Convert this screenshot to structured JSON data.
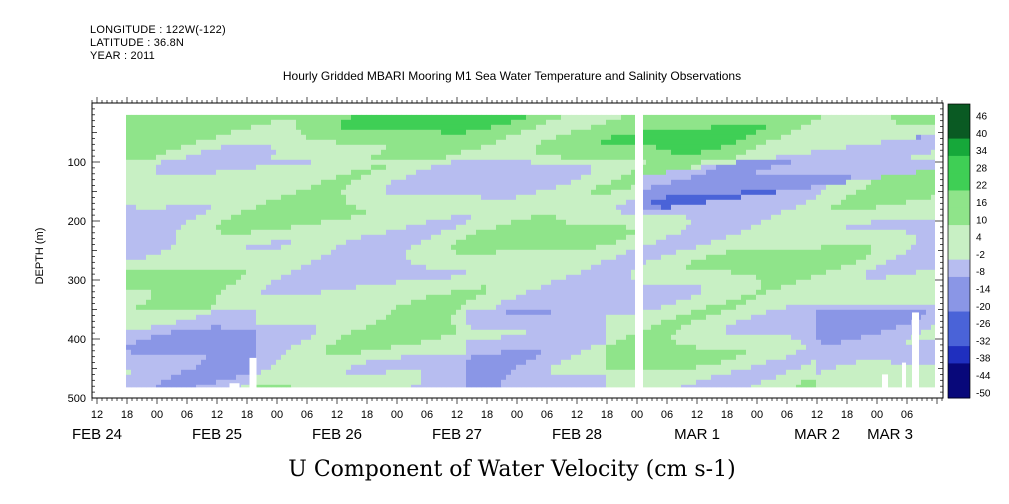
{
  "header": {
    "longitude": "LONGITUDE : 122W(-122)",
    "latitude": "LATITUDE : 36.8N",
    "year": "YEAR : 2011",
    "title": "Hourly Gridded MBARI Mooring M1 Sea Water Temperature and Salinity Observations"
  },
  "chart_data": {
    "type": "heatmap",
    "title": "Hourly Gridded MBARI Mooring M1 Sea Water Temperature and Salinity Observations",
    "xlabel": "U Component of Water Velocity (cm s-1)",
    "ylabel": "DEPTH (m)",
    "ylim": [
      500,
      0
    ],
    "yticks": [
      100,
      200,
      300,
      400,
      500
    ],
    "x_hour_ticks": [
      "12",
      "18",
      "00",
      "06",
      "12",
      "18",
      "00",
      "06",
      "12",
      "18",
      "00",
      "06",
      "12",
      "18",
      "00",
      "06",
      "12",
      "18",
      "00",
      "06",
      "12",
      "18",
      "00",
      "06",
      "12",
      "18",
      "00",
      "06"
    ],
    "x_day_labels": [
      "FEB 24",
      "FEB 25",
      "FEB 26",
      "FEB 27",
      "FEB 28",
      "MAR  1",
      "MAR  2",
      "MAR  3"
    ],
    "colorbar_levels": [
      "46",
      "40",
      "34",
      "28",
      "22",
      "16",
      "10",
      "4",
      "-2",
      "-8",
      "-14",
      "-20",
      "-26",
      "-32",
      "-38",
      "-44",
      "-50"
    ],
    "colorbar_range": [
      -50,
      50
    ],
    "colormap": {
      "negative": [
        "#08087a",
        "#1f2fbf",
        "#4a63d8",
        "#8a96e6",
        "#b7bdf0"
      ],
      "positive": [
        "#c8f0c4",
        "#8fe48a",
        "#3fcf55",
        "#16a83a",
        "#0a5a23"
      ]
    },
    "data_range_time": "FEB 24 12:00 to MAR 3 08:00",
    "data_range_depth_m": [
      20,
      480
    ],
    "gap_time": "MAR 1 00:00"
  }
}
